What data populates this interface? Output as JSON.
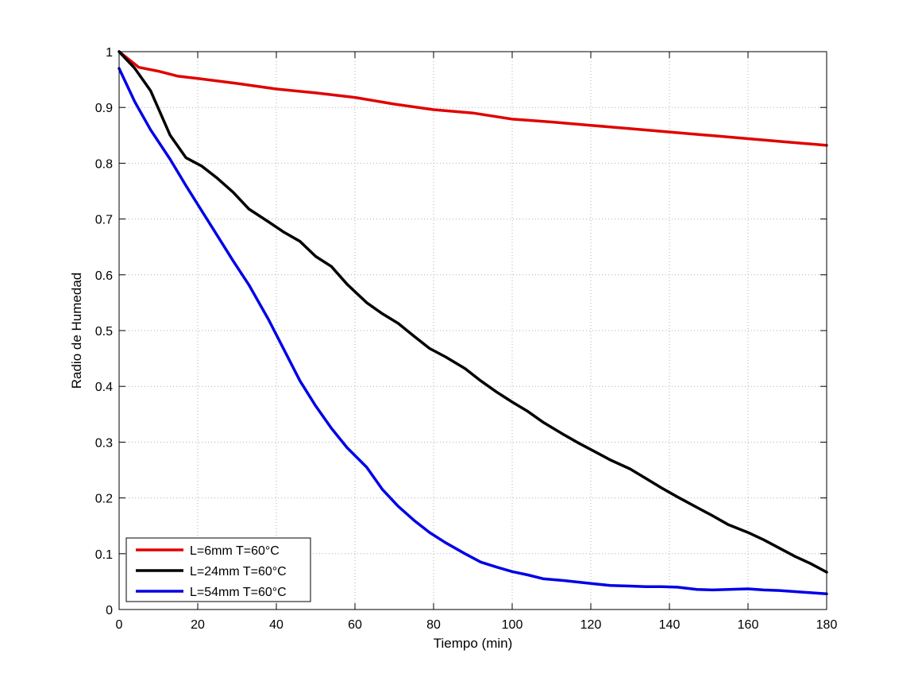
{
  "chart_data": {
    "type": "line",
    "title": "",
    "xlabel": "Tiempo (min)",
    "ylabel": "Radio de Humedad",
    "xlim": [
      0,
      180
    ],
    "ylim": [
      0,
      1
    ],
    "xticks": [
      "0",
      "20",
      "40",
      "60",
      "80",
      "100",
      "120",
      "140",
      "160",
      "180"
    ],
    "yticks": [
      "0",
      "0.1",
      "0.2",
      "0.3",
      "0.4",
      "0.5",
      "0.6",
      "0.7",
      "0.8",
      "0.9",
      "1"
    ],
    "grid": true,
    "legend_position": "bottom-left",
    "series": [
      {
        "name": "L=6mm T=60°C",
        "color": "#e00000",
        "x": [
          0,
          5,
          10,
          15,
          20,
          30,
          40,
          50,
          60,
          70,
          80,
          90,
          100,
          110,
          120,
          130,
          140,
          150,
          160,
          170,
          180
        ],
        "y": [
          1.0,
          0.972,
          0.965,
          0.956,
          0.952,
          0.943,
          0.933,
          0.926,
          0.918,
          0.906,
          0.896,
          0.89,
          0.879,
          0.874,
          0.868,
          0.862,
          0.856,
          0.85,
          0.844,
          0.838,
          0.832
        ]
      },
      {
        "name": "L=24mm T=60°C",
        "color": "#000000",
        "x": [
          0,
          4,
          8,
          13,
          17,
          21,
          25,
          29,
          33,
          38,
          42,
          46,
          50,
          54,
          58,
          63,
          67,
          71,
          75,
          79,
          83,
          88,
          92,
          96,
          100,
          104,
          108,
          113,
          117,
          121,
          125,
          130,
          134,
          138,
          142,
          147,
          151,
          155,
          160,
          164,
          168,
          172,
          176,
          180
        ],
        "y": [
          1.0,
          0.97,
          0.93,
          0.85,
          0.81,
          0.795,
          0.773,
          0.748,
          0.718,
          0.695,
          0.676,
          0.66,
          0.633,
          0.615,
          0.583,
          0.55,
          0.53,
          0.513,
          0.49,
          0.468,
          0.453,
          0.432,
          0.41,
          0.39,
          0.372,
          0.355,
          0.335,
          0.314,
          0.298,
          0.283,
          0.268,
          0.252,
          0.235,
          0.218,
          0.202,
          0.183,
          0.168,
          0.152,
          0.138,
          0.125,
          0.11,
          0.095,
          0.082,
          0.067
        ]
      },
      {
        "name": "L=54mm T=60°C",
        "color": "#0000e6",
        "x": [
          0,
          4,
          8,
          13,
          17,
          21,
          25,
          29,
          33,
          38,
          42,
          46,
          50,
          54,
          58,
          63,
          67,
          71,
          75,
          79,
          83,
          88,
          92,
          96,
          100,
          104,
          108,
          113,
          117,
          121,
          125,
          130,
          134,
          138,
          142,
          147,
          151,
          155,
          160,
          164,
          168,
          172,
          176,
          180
        ],
        "y": [
          0.97,
          0.91,
          0.86,
          0.807,
          0.76,
          0.715,
          0.67,
          0.625,
          0.582,
          0.52,
          0.465,
          0.41,
          0.365,
          0.325,
          0.29,
          0.255,
          0.215,
          0.185,
          0.16,
          0.138,
          0.12,
          0.1,
          0.085,
          0.076,
          0.068,
          0.062,
          0.055,
          0.052,
          0.049,
          0.046,
          0.043,
          0.042,
          0.041,
          0.041,
          0.04,
          0.036,
          0.035,
          0.036,
          0.037,
          0.035,
          0.034,
          0.032,
          0.03,
          0.028
        ]
      }
    ]
  }
}
